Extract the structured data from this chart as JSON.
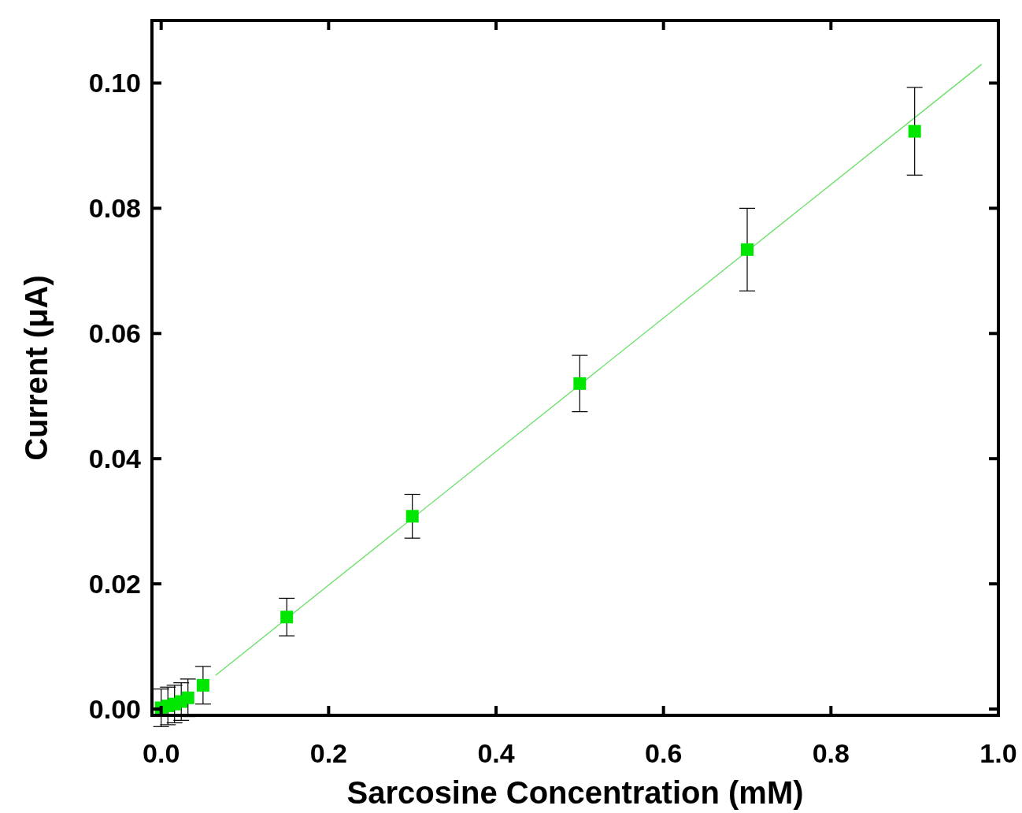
{
  "chart_data": {
    "type": "scatter",
    "xlabel": "Sarcosine Concentration (mM)",
    "ylabel": "Current (μA)",
    "xlim": [
      -0.011,
      1.0
    ],
    "ylim": [
      -0.001,
      0.11
    ],
    "xticks": [
      {
        "value": 0,
        "label": "0.0"
      },
      {
        "value": 0.2,
        "label": "0.2"
      },
      {
        "value": 0.4,
        "label": "0.4"
      },
      {
        "value": 0.6,
        "label": "0.6"
      },
      {
        "value": 0.8,
        "label": "0.8"
      },
      {
        "value": 1.0,
        "label": "1.0"
      }
    ],
    "yticks": [
      {
        "value": 0,
        "label": "0.00"
      },
      {
        "value": 0.02,
        "label": "0.02"
      },
      {
        "value": 0.04,
        "label": "0.04"
      },
      {
        "value": 0.06,
        "label": "0.06"
      },
      {
        "value": 0.08,
        "label": "0.08"
      },
      {
        "value": 0.1,
        "label": "0.10"
      }
    ],
    "grid": false,
    "marker": "square",
    "series": [
      {
        "type": "line",
        "color": "#66e066",
        "x": [
          0.065,
          0.98
        ],
        "values": [
          0.0054,
          0.103
        ],
        "marker": "none"
      },
      {
        "color": "#00e600",
        "x": [
          0,
          0.008,
          0.016,
          0.024,
          0.032,
          0.05,
          0.15,
          0.3,
          0.5,
          0.7,
          0.9
        ],
        "values": [
          0.0002,
          0.0005,
          0.0008,
          0.0012,
          0.0018,
          0.0038,
          0.0147,
          0.0308,
          0.052,
          0.0734,
          0.0923
        ],
        "errors": [
          0.003,
          0.003,
          0.003,
          0.003,
          0.003,
          0.003,
          0.003,
          0.0035,
          0.0045,
          0.0066,
          0.007
        ]
      }
    ]
  }
}
